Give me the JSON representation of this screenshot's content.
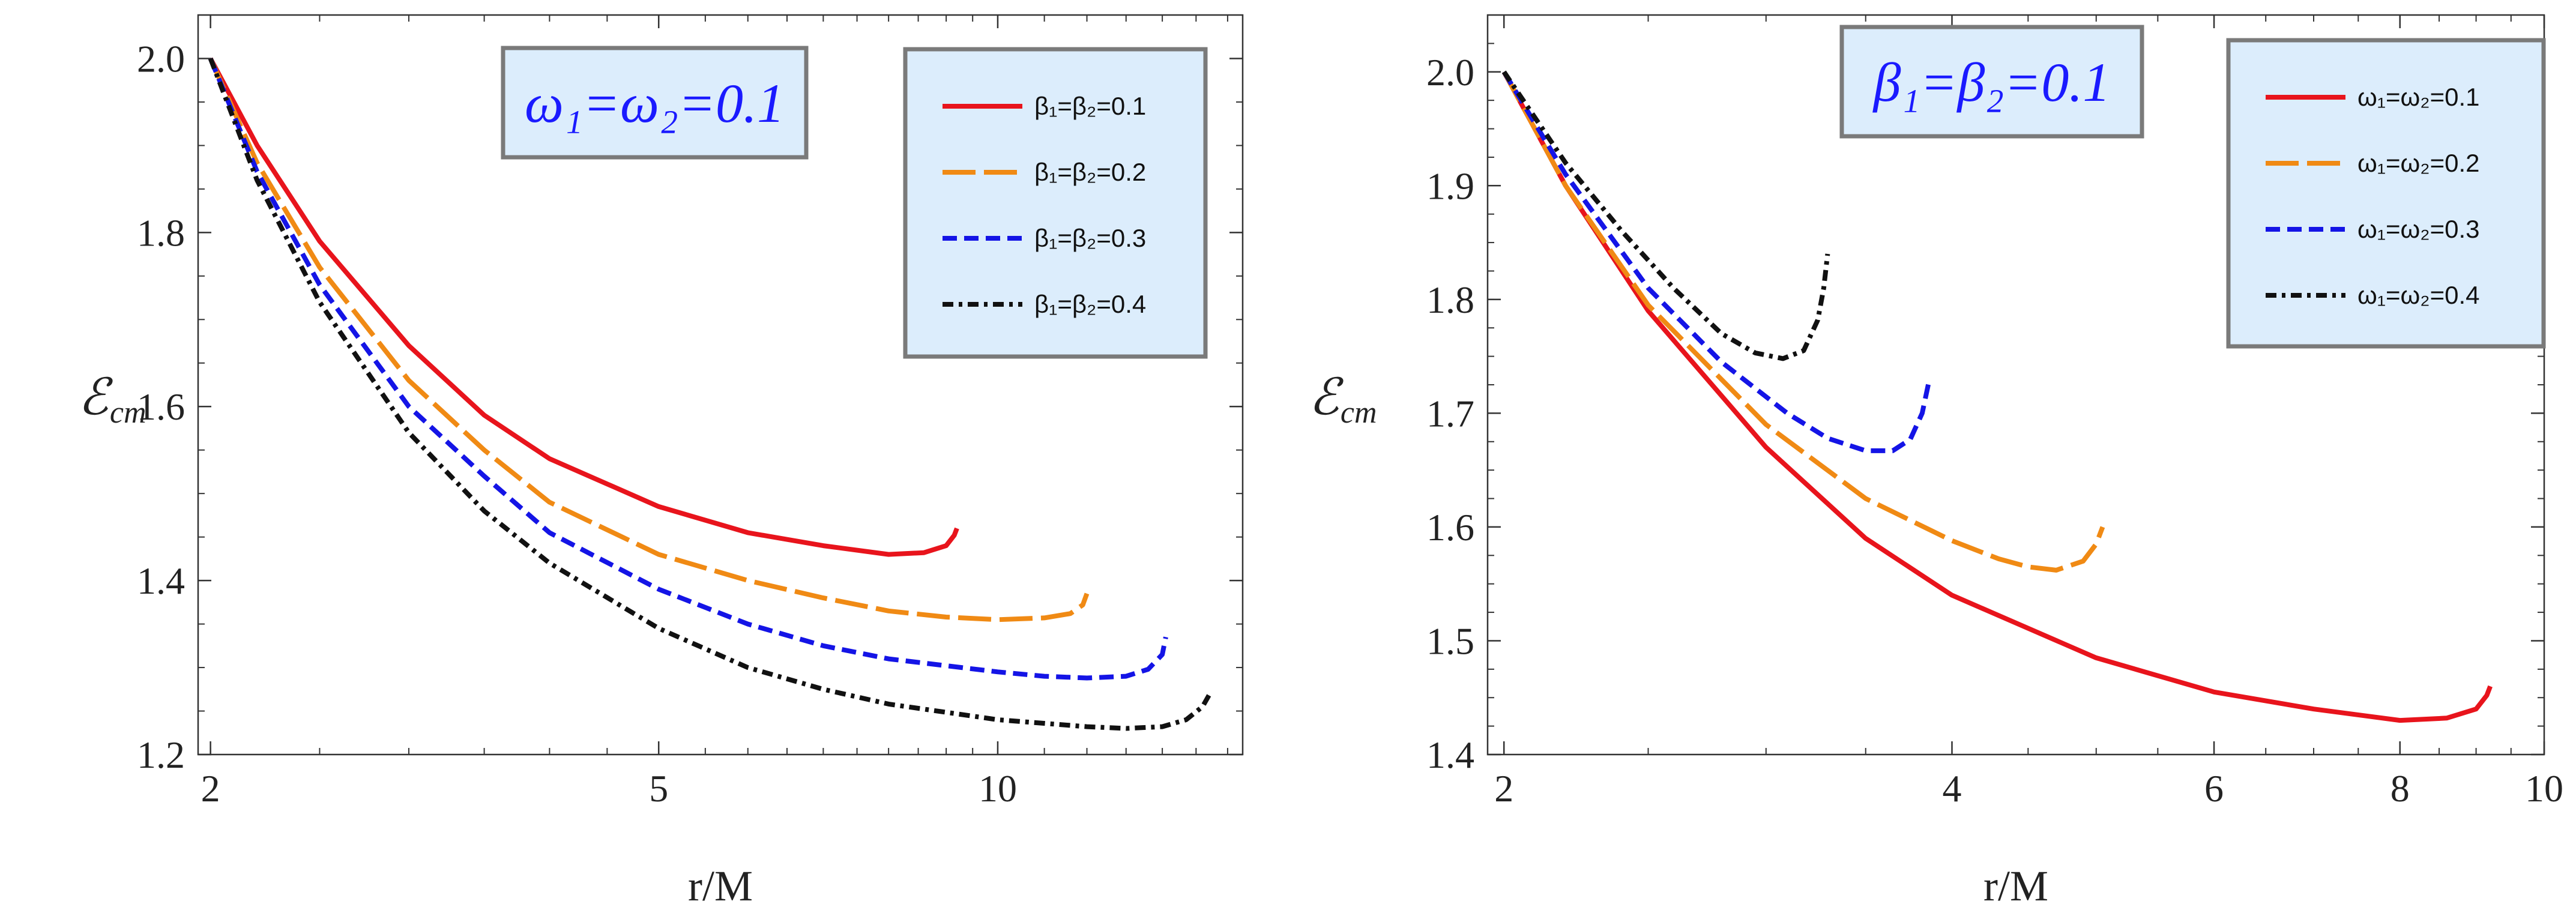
{
  "colors": {
    "red": "#e8141c",
    "orange": "#f08a14",
    "blue": "#1414e6",
    "black": "#111111",
    "box_fill": "#dcedfc",
    "box_stroke": "#7a7a7a"
  },
  "chart_data": [
    {
      "type": "line",
      "title": "",
      "xlabel": "r/M",
      "ylabel": "ℰ",
      "ylabel_sub": "cm",
      "xscale": "log",
      "xlim": [
        1.95,
        16.5
      ],
      "ylim": [
        1.2,
        2.05
      ],
      "xticks": [
        2,
        5,
        10
      ],
      "xtick_labels": [
        "2",
        "5",
        "10"
      ],
      "yticks": [
        1.2,
        1.4,
        1.6,
        1.8,
        2.0
      ],
      "ytick_labels": [
        "1.2",
        "1.4",
        "1.6",
        "1.8",
        "2.0"
      ],
      "annotation": "ω₁=ω₂=0.1",
      "legend_position": "top-right",
      "series": [
        {
          "name": "β₁=β₂=0.1",
          "color": "red",
          "dash": "solid",
          "x": [
            2.0,
            2.2,
            2.5,
            3.0,
            3.5,
            4.0,
            5.0,
            6.0,
            7.0,
            8.0,
            8.6,
            9.0,
            9.15,
            9.2
          ],
          "y": [
            2.0,
            1.9,
            1.79,
            1.67,
            1.59,
            1.54,
            1.485,
            1.455,
            1.44,
            1.43,
            1.432,
            1.44,
            1.452,
            1.46
          ]
        },
        {
          "name": "β₁=β₂=0.2",
          "color": "orange",
          "dash": "long",
          "x": [
            2.0,
            2.2,
            2.5,
            3.0,
            3.5,
            4.0,
            5.0,
            6.0,
            7.0,
            8.0,
            9.0,
            10.0,
            11.0,
            11.6,
            11.9,
            12.0
          ],
          "y": [
            2.0,
            1.88,
            1.76,
            1.63,
            1.55,
            1.49,
            1.43,
            1.4,
            1.38,
            1.365,
            1.358,
            1.355,
            1.357,
            1.362,
            1.372,
            1.385
          ]
        },
        {
          "name": "β₁=β₂=0.3",
          "color": "blue",
          "dash": "short",
          "x": [
            2.0,
            2.2,
            2.5,
            3.0,
            3.5,
            4.0,
            5.0,
            6.0,
            7.0,
            8.0,
            10.0,
            11.0,
            12.0,
            13.0,
            13.6,
            14.0,
            14.1
          ],
          "y": [
            2.0,
            1.87,
            1.74,
            1.6,
            1.52,
            1.455,
            1.39,
            1.35,
            1.325,
            1.31,
            1.295,
            1.29,
            1.288,
            1.29,
            1.298,
            1.315,
            1.335
          ]
        },
        {
          "name": "β₁=β₂=0.4",
          "color": "black",
          "dash": "dashdot",
          "x": [
            2.0,
            2.2,
            2.5,
            3.0,
            3.5,
            4.0,
            5.0,
            6.0,
            7.0,
            8.0,
            10.0,
            12.0,
            13.0,
            14.0,
            14.7,
            15.2,
            15.4
          ],
          "y": [
            2.0,
            1.86,
            1.72,
            1.57,
            1.48,
            1.42,
            1.345,
            1.3,
            1.275,
            1.258,
            1.24,
            1.232,
            1.23,
            1.232,
            1.24,
            1.255,
            1.268
          ]
        }
      ]
    },
    {
      "type": "line",
      "title": "",
      "xlabel": "r/M",
      "ylabel": "ℰ",
      "ylabel_sub": "cm",
      "xscale": "log",
      "xlim": [
        1.95,
        10.0
      ],
      "ylim": [
        1.4,
        2.05
      ],
      "xticks": [
        2,
        4,
        6,
        8,
        10
      ],
      "xtick_labels": [
        "2",
        "4",
        "6",
        "8",
        "10"
      ],
      "yticks": [
        1.4,
        1.5,
        1.6,
        1.7,
        1.8,
        1.9,
        2.0
      ],
      "ytick_labels": [
        "1.4",
        "1.5",
        "1.6",
        "1.7",
        "1.8",
        "1.9",
        "2.0"
      ],
      "annotation": "β₁=β₂=0.1",
      "legend_position": "top-right",
      "series": [
        {
          "name": "ω₁=ω₂=0.1",
          "color": "red",
          "dash": "solid",
          "x": [
            2.0,
            2.2,
            2.5,
            3.0,
            3.5,
            4.0,
            5.0,
            6.0,
            7.0,
            8.0,
            8.6,
            9.0,
            9.15,
            9.2
          ],
          "y": [
            2.0,
            1.9,
            1.79,
            1.67,
            1.59,
            1.54,
            1.485,
            1.455,
            1.44,
            1.43,
            1.432,
            1.44,
            1.452,
            1.46
          ]
        },
        {
          "name": "ω₁=ω₂=0.2",
          "color": "orange",
          "dash": "long",
          "x": [
            2.0,
            2.2,
            2.5,
            3.0,
            3.5,
            4.0,
            4.3,
            4.5,
            4.7,
            4.9,
            5.0,
            5.05
          ],
          "y": [
            2.0,
            1.9,
            1.795,
            1.69,
            1.625,
            1.588,
            1.572,
            1.565,
            1.562,
            1.57,
            1.585,
            1.6
          ]
        },
        {
          "name": "ω₁=ω₂=0.3",
          "color": "blue",
          "dash": "short",
          "x": [
            2.0,
            2.2,
            2.5,
            2.8,
            3.1,
            3.3,
            3.5,
            3.65,
            3.75,
            3.82,
            3.86
          ],
          "y": [
            2.0,
            1.91,
            1.81,
            1.745,
            1.7,
            1.678,
            1.667,
            1.667,
            1.677,
            1.7,
            1.728
          ]
        },
        {
          "name": "ω₁=ω₂=0.4",
          "color": "black",
          "dash": "dashdot",
          "x": [
            2.0,
            2.2,
            2.4,
            2.6,
            2.8,
            2.95,
            3.08,
            3.18,
            3.25,
            3.28,
            3.3
          ],
          "y": [
            2.0,
            1.92,
            1.86,
            1.81,
            1.77,
            1.753,
            1.748,
            1.755,
            1.782,
            1.81,
            1.84
          ]
        }
      ]
    }
  ]
}
